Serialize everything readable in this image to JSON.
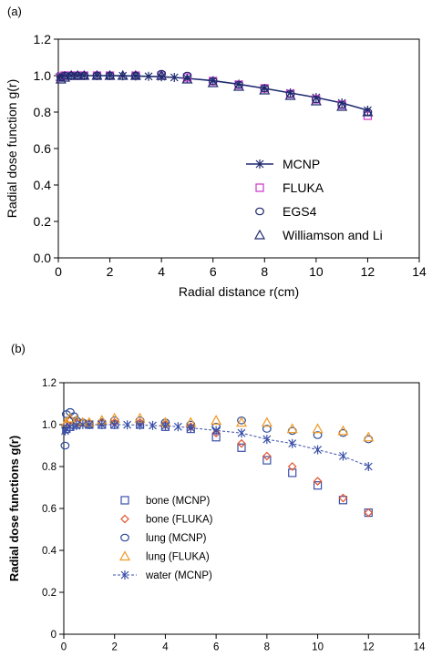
{
  "chart_data": [
    {
      "type": "scatter",
      "panel_label": "(a)",
      "xlabel": "Radial distance r(cm)",
      "ylabel": "Radial dose function g(r)",
      "xlim": [
        0,
        14
      ],
      "ylim": [
        0,
        1.2
      ],
      "xticks": [
        0,
        2,
        4,
        6,
        8,
        10,
        12,
        14
      ],
      "yticks": [
        0.0,
        0.2,
        0.4,
        0.6,
        0.8,
        1.0,
        1.2
      ],
      "xtick_labels": [
        "0",
        "2",
        "4",
        "6",
        "8",
        "10",
        "12",
        "14"
      ],
      "ytick_labels": [
        "0.0",
        "0.2",
        "0.4",
        "0.6",
        "0.8",
        "1.0",
        "1.2"
      ],
      "grid": false,
      "legend_position": "bottom-right",
      "series": [
        {
          "name": "MCNP",
          "marker": "asterisk",
          "line": "solid",
          "color": "#1f2a6e",
          "x": [
            0.05,
            0.1,
            0.25,
            0.5,
            0.75,
            1,
            1.5,
            2,
            2.5,
            3,
            3.5,
            4,
            4.5,
            5,
            6,
            7,
            8,
            9,
            10,
            11,
            12
          ],
          "y": [
            0.992,
            0.997,
            1.0,
            1.0,
            1.0,
            1.0,
            1.0,
            1.0,
            0.999,
            0.998,
            0.996,
            0.994,
            0.99,
            0.985,
            0.972,
            0.953,
            0.93,
            0.905,
            0.88,
            0.85,
            0.81
          ]
        },
        {
          "name": "FLUKA",
          "marker": "square",
          "color": "#cc33cc",
          "x": [
            0.1,
            0.25,
            0.5,
            0.75,
            1,
            1.5,
            2,
            3,
            4,
            5,
            6,
            7,
            8,
            9,
            10,
            11,
            12
          ],
          "y": [
            0.99,
            1.0,
            1.0,
            1.0,
            1.0,
            1.0,
            1.0,
            1.0,
            1.0,
            0.99,
            0.97,
            0.95,
            0.93,
            0.9,
            0.87,
            0.84,
            0.78
          ]
        },
        {
          "name": "EGS4",
          "marker": "circle",
          "color": "#1f2a6e",
          "x": [
            0.1,
            0.25,
            0.5,
            0.75,
            1,
            1.5,
            2,
            3,
            4,
            5,
            6,
            7,
            8,
            9,
            10,
            11,
            12
          ],
          "y": [
            0.99,
            1.0,
            1.0,
            1.0,
            1.0,
            1.0,
            1.0,
            1.0,
            1.01,
            1.0,
            0.97,
            0.95,
            0.93,
            0.9,
            0.87,
            0.84,
            0.8
          ]
        },
        {
          "name": "Williamson and Li",
          "marker": "triangle",
          "color": "#1f2a6e",
          "x": [
            0.1,
            0.25,
            0.5,
            0.75,
            1,
            1.5,
            2,
            2.5,
            3,
            4,
            5,
            6,
            7,
            8,
            9,
            10,
            11,
            12
          ],
          "y": [
            0.98,
            0.99,
            1.0,
            1.0,
            1.0,
            1.0,
            1.0,
            1.0,
            1.0,
            1.0,
            0.98,
            0.96,
            0.94,
            0.92,
            0.89,
            0.86,
            0.83,
            0.8
          ]
        }
      ]
    },
    {
      "type": "scatter",
      "panel_label": "(b)",
      "xlabel": "Radial distance r(cm)",
      "ylabel": "Radial dose functions g(r)",
      "xlim": [
        0,
        14
      ],
      "ylim": [
        0,
        1.2
      ],
      "xticks": [
        0,
        2,
        4,
        6,
        8,
        10,
        12,
        14
      ],
      "yticks": [
        0,
        0.2,
        0.4,
        0.6,
        0.8,
        1.0,
        1.2
      ],
      "xtick_labels": [
        "0",
        "2",
        "4",
        "6",
        "8",
        "10",
        "12",
        "14"
      ],
      "ytick_labels": [
        "0",
        "0.2",
        "0.4",
        "0.6",
        "0.8",
        "1.0",
        "1.2"
      ],
      "grid": false,
      "legend_position": "bottom-left",
      "series": [
        {
          "name": "bone (MCNP)",
          "marker": "square",
          "color": "#3a4fa8",
          "x": [
            0.1,
            0.25,
            0.5,
            1,
            1.5,
            2,
            3,
            4,
            5,
            6,
            7,
            8,
            9,
            10,
            11,
            12
          ],
          "y": [
            0.98,
            0.99,
            1.0,
            1.0,
            1.0,
            1.0,
            1.0,
            0.99,
            0.98,
            0.94,
            0.89,
            0.83,
            0.77,
            0.71,
            0.64,
            0.58
          ]
        },
        {
          "name": "bone (FLUKA)",
          "marker": "diamond",
          "color": "#e0502c",
          "x": [
            0.1,
            0.25,
            0.5,
            1,
            1.5,
            2,
            3,
            4,
            5,
            6,
            7,
            8,
            9,
            10,
            11,
            12
          ],
          "y": [
            1.0,
            1.02,
            1.01,
            1.01,
            1.01,
            1.01,
            1.01,
            1.0,
            0.99,
            0.96,
            0.91,
            0.85,
            0.8,
            0.73,
            0.65,
            0.58
          ]
        },
        {
          "name": "lung (MCNP)",
          "marker": "circle",
          "color": "#2a4a9a",
          "x": [
            0.05,
            0.1,
            0.25,
            0.4,
            0.5,
            0.75,
            1,
            1.5,
            2,
            3,
            4,
            5,
            6,
            7,
            8,
            9,
            10,
            11,
            12
          ],
          "y": [
            0.9,
            1.05,
            1.06,
            1.04,
            1.02,
            1.01,
            1.0,
            1.01,
            1.02,
            1.02,
            1.01,
            1.0,
            0.99,
            1.02,
            0.98,
            0.97,
            0.95,
            0.96,
            0.93
          ]
        },
        {
          "name": "lung (FLUKA)",
          "marker": "triangle",
          "color": "#ee9922",
          "x": [
            0.1,
            0.25,
            0.5,
            0.75,
            1,
            1.5,
            2,
            3,
            4,
            5,
            6,
            7,
            8,
            9,
            10,
            11,
            12
          ],
          "y": [
            1.01,
            1.03,
            1.02,
            1.01,
            1.01,
            1.02,
            1.03,
            1.03,
            1.01,
            1.01,
            1.02,
            1.01,
            1.01,
            0.98,
            0.98,
            0.97,
            0.94
          ]
        },
        {
          "name": "water (MCNP)",
          "marker": "asterisk",
          "line": "dashed",
          "color": "#3a4fa8",
          "x": [
            0.05,
            0.1,
            0.25,
            0.5,
            0.75,
            1,
            1.5,
            2,
            2.5,
            3,
            3.5,
            4,
            4.5,
            5,
            6,
            7,
            8,
            9,
            10,
            11,
            12
          ],
          "y": [
            0.97,
            0.98,
            0.99,
            0.995,
            1.0,
            1.0,
            1.0,
            1.0,
            0.999,
            0.998,
            0.996,
            0.994,
            0.99,
            0.985,
            0.972,
            0.96,
            0.93,
            0.91,
            0.88,
            0.85,
            0.8
          ]
        }
      ]
    }
  ]
}
